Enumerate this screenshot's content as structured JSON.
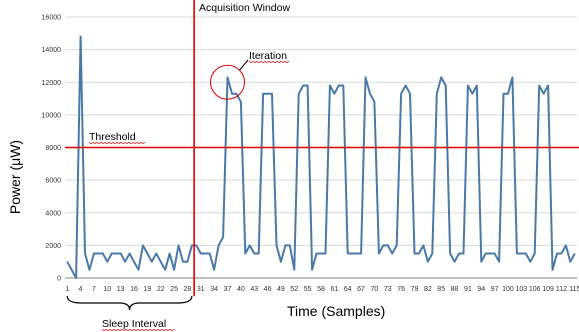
{
  "chart_data": {
    "type": "line",
    "xlabel": "Time (Samples)",
    "ylabel": "Power (μW)",
    "ylim": [
      0,
      16000
    ],
    "grid": true,
    "x_tick_labels": [
      "1",
      "4",
      "7",
      "10",
      "13",
      "16",
      "19",
      "22",
      "25",
      "28",
      "31",
      "34",
      "37",
      "40",
      "43",
      "46",
      "49",
      "52",
      "55",
      "58",
      "61",
      "64",
      "67",
      "70",
      "73",
      "76",
      "79",
      "82",
      "85",
      "88",
      "91",
      "94",
      "97",
      "100",
      "103",
      "106",
      "109",
      "112",
      "115"
    ],
    "y_tick_labels": [
      "0",
      "2000",
      "4000",
      "6000",
      "8000",
      "10000",
      "12000",
      "14000",
      "16000"
    ],
    "series": [
      {
        "values": [
          1000,
          500,
          0,
          14800,
          1500,
          500,
          1500,
          1500,
          1500,
          1000,
          1500,
          1500,
          1500,
          1000,
          1500,
          1000,
          500,
          2000,
          1500,
          1000,
          1500,
          1000,
          500,
          1500,
          500,
          2000,
          1000,
          1000,
          2000,
          2000,
          1500,
          1500,
          1500,
          500,
          2000,
          2500,
          12300,
          11300,
          11300,
          10800,
          1500,
          2000,
          1500,
          1500,
          11300,
          11300,
          11300,
          2000,
          1000,
          2000,
          2000,
          500,
          11300,
          11800,
          11800,
          500,
          1500,
          1500,
          1500,
          11800,
          11300,
          11800,
          11800,
          1500,
          1500,
          1500,
          1500,
          12300,
          11300,
          10800,
          1500,
          2000,
          2000,
          1500,
          2000,
          11300,
          11800,
          11300,
          1500,
          1500,
          2000,
          1000,
          1500,
          11300,
          12300,
          11800,
          1500,
          1000,
          1500,
          1500,
          11800,
          11300,
          11800,
          1000,
          1500,
          1500,
          1500,
          1000,
          11300,
          11300,
          12300,
          1500,
          1500,
          1500,
          1000,
          1500,
          11800,
          11300,
          11800,
          500,
          1500,
          1500,
          2000,
          1000,
          1500
        ],
        "color": "#4a79a8"
      }
    ],
    "threshold": {
      "label": "Threshold",
      "value": 8000,
      "color": "#e00000"
    },
    "acquisition_window": {
      "label": "Acquisition Window",
      "x": 29.5,
      "color": "#e00000"
    },
    "iteration": {
      "label": "Iteration",
      "x": 37,
      "y": 12000,
      "color": "#e00000"
    },
    "sleep_interval": {
      "label": "Sleep Interval",
      "x_start": 1,
      "x_end": 29
    }
  }
}
